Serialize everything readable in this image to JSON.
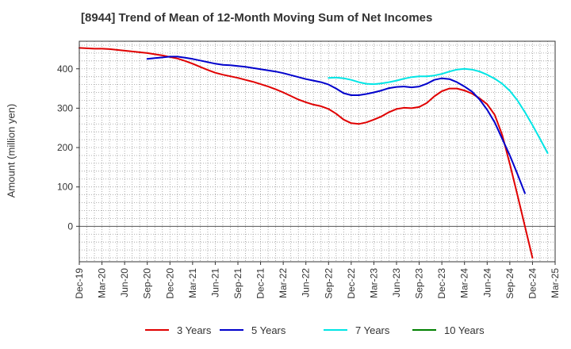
{
  "chart_data": {
    "type": "line",
    "title": "[8944]  Trend of Mean of 12-Month Moving Sum of Net Incomes",
    "xlabel": "",
    "ylabel": "Amount (million yen)",
    "ylim": [
      -90,
      470
    ],
    "yticks": [
      0,
      100,
      200,
      300,
      400
    ],
    "xticks": [
      "Dec-19",
      "Mar-20",
      "Jun-20",
      "Sep-20",
      "Dec-20",
      "Mar-21",
      "Jun-21",
      "Sep-21",
      "Dec-21",
      "Mar-22",
      "Jun-22",
      "Sep-22",
      "Dec-22",
      "Mar-23",
      "Jun-23",
      "Sep-23",
      "Dec-23",
      "Mar-24",
      "Jun-24",
      "Sep-24",
      "Dec-24",
      "Mar-25"
    ],
    "grid": true,
    "legend_position": "bottom",
    "series": [
      {
        "name": "3 Years",
        "color": "#e00000",
        "start_index": 0,
        "values": [
          453,
          452,
          451,
          451,
          450,
          448,
          446,
          444,
          442,
          440,
          437,
          434,
          430,
          426,
          420,
          413,
          405,
          397,
          390,
          385,
          381,
          377,
          372,
          367,
          361,
          355,
          348,
          340,
          331,
          322,
          315,
          309,
          305,
          298,
          286,
          271,
          262,
          260,
          264,
          271,
          279,
          290,
          298,
          301,
          300,
          303,
          313,
          330,
          343,
          350,
          350,
          345,
          337,
          325,
          310,
          283,
          232,
          158,
          80,
          0,
          -80
        ]
      },
      {
        "name": "5 Years",
        "color": "#0000cc",
        "start_index": 9,
        "values": [
          425,
          427,
          429,
          431,
          431,
          428,
          425,
          421,
          417,
          413,
          410,
          409,
          407,
          405,
          402,
          399,
          396,
          393,
          389,
          384,
          379,
          374,
          370,
          366,
          360,
          350,
          338,
          333,
          333,
          336,
          340,
          345,
          351,
          354,
          355,
          353,
          355,
          362,
          372,
          376,
          374,
          366,
          355,
          342,
          322,
          296,
          264,
          222,
          180,
          133,
          84
        ]
      },
      {
        "name": "7 Years",
        "color": "#00e5e5",
        "start_index": 33,
        "values": [
          377,
          378,
          376,
          372,
          366,
          362,
          361,
          363,
          366,
          370,
          375,
          379,
          381,
          381,
          383,
          387,
          393,
          398,
          400,
          398,
          393,
          385,
          375,
          362,
          344,
          320,
          290,
          257,
          222,
          186
        ]
      },
      {
        "name": "10 Years",
        "color": "#008000",
        "start_index": 0,
        "values": []
      }
    ]
  }
}
